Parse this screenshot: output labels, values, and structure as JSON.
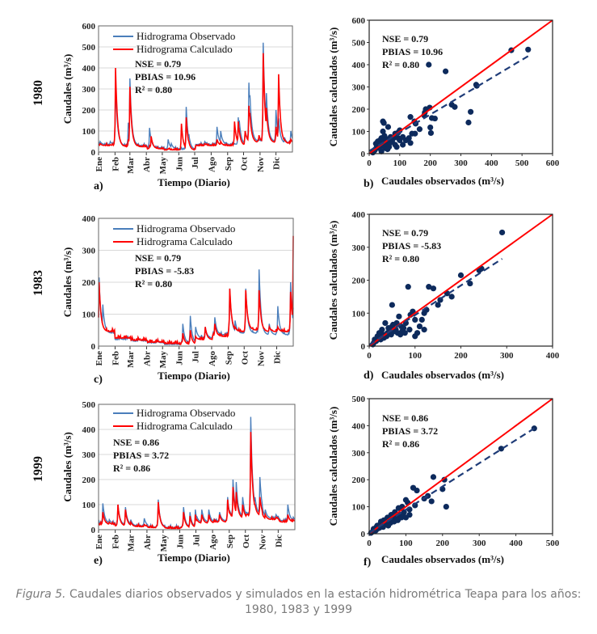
{
  "colors": {
    "observed": "#4a7ebb",
    "calculated": "#ff0000",
    "points": "#0d2a5c",
    "grid": "#d9d9d9"
  },
  "caption": {
    "label": "Figura 5.",
    "text": " Caudales diarios observados y simulados en la estación hidrométrica Teapa para los años:",
    "line2": "1980, 1983 y 1999"
  },
  "chart_data": [
    {
      "type": "line",
      "panel": "a)",
      "year": "1980",
      "xlabel": "Tiempo (Diario)",
      "ylabel": "Caudales (m³/s)",
      "ylim": [
        0,
        600
      ],
      "yticks": [
        0,
        100,
        200,
        300,
        400,
        500,
        600
      ],
      "months": [
        "Ene",
        "Feb",
        "Mar",
        "Abr",
        "May",
        "Jun",
        "Jul",
        "Ago",
        "Sep",
        "Oct",
        "Nov",
        "Dic"
      ],
      "legend": [
        "Hidrograma Observado",
        "Hidrograma Calculado"
      ],
      "stats": [
        "NSE = 0.79",
        "PBIAS = 10.96",
        "R² = 0.80"
      ],
      "baseline_monthly": {
        "observed": [
          35,
          30,
          30,
          20,
          15,
          12,
          35,
          35,
          35,
          50,
          50,
          40
        ],
        "calculated": [
          30,
          25,
          25,
          15,
          10,
          8,
          30,
          30,
          30,
          45,
          45,
          40
        ]
      },
      "peaks": [
        [
          3,
          50,
          40
        ],
        [
          22,
          50,
          35
        ],
        [
          32,
          330,
          400
        ],
        [
          40,
          60,
          50
        ],
        [
          56,
          140,
          60
        ],
        [
          59,
          350,
          310
        ],
        [
          70,
          45,
          30
        ],
        [
          96,
          115,
          30
        ],
        [
          99,
          40,
          75
        ],
        [
          131,
          60,
          15
        ],
        [
          137,
          40,
          10
        ],
        [
          156,
          10,
          135
        ],
        [
          165,
          215,
          165
        ],
        [
          170,
          85,
          50
        ],
        [
          200,
          50,
          40
        ],
        [
          223,
          120,
          60
        ],
        [
          230,
          100,
          50
        ],
        [
          239,
          45,
          20
        ],
        [
          256,
          40,
          145
        ],
        [
          263,
          165,
          145
        ],
        [
          265,
          150,
          100
        ],
        [
          276,
          100,
          100
        ],
        [
          283,
          330,
          220
        ],
        [
          285,
          270,
          180
        ],
        [
          302,
          60,
          80
        ],
        [
          310,
          520,
          470
        ],
        [
          316,
          280,
          210
        ],
        [
          334,
          200,
          120
        ],
        [
          339,
          160,
          370
        ],
        [
          350,
          70,
          60
        ],
        [
          362,
          100,
          60
        ]
      ]
    },
    {
      "type": "scatter",
      "panel": "b)",
      "year": "1980",
      "xlabel": "Caudales observados (m³/s)",
      "ylabel": "Caudales calculados (m³/s)",
      "xlim": [
        0,
        600
      ],
      "ylim": [
        0,
        600
      ],
      "ticks": [
        0,
        100,
        200,
        300,
        400,
        500,
        600
      ],
      "stats": [
        "NSE = 0.79",
        "PBIAS = 10.96",
        "R² = 0.80"
      ],
      "fit": {
        "slope": 0.82,
        "intercept": 12,
        "xmax": 520
      },
      "points": [
        [
          520,
          468
        ],
        [
          465,
          465
        ],
        [
          195,
          400
        ],
        [
          250,
          370
        ],
        [
          350,
          310
        ],
        [
          352,
          305
        ],
        [
          332,
          188
        ],
        [
          325,
          140
        ],
        [
          270,
          220
        ],
        [
          280,
          210
        ],
        [
          185,
          200
        ],
        [
          182,
          185
        ],
        [
          180,
          172
        ],
        [
          198,
          207
        ],
        [
          205,
          160
        ],
        [
          215,
          158
        ],
        [
          200,
          118
        ],
        [
          202,
          93
        ],
        [
          135,
          165
        ],
        [
          148,
          145
        ],
        [
          152,
          135
        ],
        [
          150,
          90
        ],
        [
          165,
          110
        ],
        [
          140,
          90
        ],
        [
          130,
          70
        ],
        [
          120,
          60
        ],
        [
          135,
          48
        ],
        [
          110,
          40
        ],
        [
          45,
          145
        ],
        [
          48,
          138
        ],
        [
          62,
          120
        ],
        [
          45,
          100
        ],
        [
          100,
          105
        ],
        [
          95,
          95
        ],
        [
          85,
          90
        ],
        [
          90,
          30
        ],
        [
          100,
          60
        ],
        [
          80,
          70
        ],
        [
          70,
          75
        ],
        [
          60,
          65
        ],
        [
          55,
          50
        ],
        [
          50,
          80
        ],
        [
          40,
          70
        ],
        [
          35,
          60
        ],
        [
          30,
          40
        ],
        [
          25,
          30
        ],
        [
          20,
          20
        ],
        [
          15,
          10
        ],
        [
          12,
          5
        ],
        [
          18,
          15
        ],
        [
          28,
          55
        ],
        [
          38,
          45
        ],
        [
          45,
          35
        ],
        [
          52,
          25
        ],
        [
          65,
          30
        ],
        [
          75,
          55
        ],
        [
          85,
          40
        ],
        [
          60,
          20
        ],
        [
          40,
          10
        ],
        [
          33,
          25
        ],
        [
          22,
          45
        ],
        [
          48,
          60
        ],
        [
          58,
          42
        ],
        [
          68,
          48
        ],
        [
          95,
          70
        ],
        [
          110,
          75
        ]
      ]
    },
    {
      "type": "line",
      "panel": "c)",
      "year": "1983",
      "xlabel": "Tiempo (Diario)",
      "ylabel": "Caudales (m³/s)",
      "ylim": [
        0,
        400
      ],
      "yticks": [
        0,
        100,
        200,
        300,
        400
      ],
      "months": [
        "Ene",
        "Feb",
        "Mar",
        "Abr",
        "May",
        "Jun",
        "Jul",
        "Ago",
        "Sep",
        "Oct",
        "Nov",
        "Dic"
      ],
      "legend": [
        "Hidrograma Observado",
        "Hidrograma Calculado"
      ],
      "stats": [
        "NSE = 0.79",
        "PBIAS = -5.83",
        "R² = 0.80"
      ],
      "baseline_monthly": {
        "observed": [
          40,
          20,
          15,
          10,
          5,
          8,
          25,
          35,
          40,
          40,
          35,
          35
        ],
        "calculated": [
          45,
          25,
          18,
          12,
          8,
          5,
          20,
          30,
          45,
          50,
          45,
          45
        ]
      },
      "peaks": [
        [
          1,
          215,
          200
        ],
        [
          8,
          130,
          60
        ],
        [
          40,
          25,
          25
        ],
        [
          55,
          30,
          20
        ],
        [
          75,
          25,
          20
        ],
        [
          110,
          15,
          15
        ],
        [
          158,
          70,
          40
        ],
        [
          172,
          95,
          50
        ],
        [
          182,
          60,
          30
        ],
        [
          200,
          60,
          60
        ],
        [
          218,
          90,
          70
        ],
        [
          246,
          180,
          180
        ],
        [
          256,
          80,
          60
        ],
        [
          276,
          180,
          175
        ],
        [
          301,
          240,
          175
        ],
        [
          320,
          70,
          60
        ],
        [
          336,
          125,
          60
        ],
        [
          360,
          200,
          170
        ],
        [
          365,
          120,
          345
        ]
      ]
    },
    {
      "type": "scatter",
      "panel": "d)",
      "year": "1983",
      "xlabel": "Caudales observados (m³/s)",
      "ylabel": "Caudales calculados (m³/s)",
      "xlim": [
        0,
        400
      ],
      "ylim": [
        0,
        400
      ],
      "ticks": [
        0,
        100,
        200,
        300,
        400
      ],
      "stats": [
        "NSE = 0.79",
        "PBIAS = -5.83",
        "R² = 0.80"
      ],
      "fit": {
        "slope": 0.9,
        "intercept": 4,
        "xmax": 290
      },
      "points": [
        [
          290,
          345
        ],
        [
          245,
          235
        ],
        [
          240,
          230
        ],
        [
          220,
          190
        ],
        [
          200,
          215
        ],
        [
          180,
          150
        ],
        [
          170,
          160
        ],
        [
          155,
          140
        ],
        [
          150,
          125
        ],
        [
          140,
          175
        ],
        [
          130,
          180
        ],
        [
          125,
          110
        ],
        [
          120,
          100
        ],
        [
          110,
          60
        ],
        [
          100,
          80
        ],
        [
          95,
          105
        ],
        [
          90,
          95
        ],
        [
          85,
          180
        ],
        [
          80,
          70
        ],
        [
          75,
          55
        ],
        [
          70,
          60
        ],
        [
          65,
          90
        ],
        [
          60,
          70
        ],
        [
          55,
          45
        ],
        [
          50,
          125
        ],
        [
          50,
          60
        ],
        [
          45,
          50
        ],
        [
          40,
          40
        ],
        [
          35,
          70
        ],
        [
          30,
          35
        ],
        [
          25,
          20
        ],
        [
          20,
          25
        ],
        [
          15,
          15
        ],
        [
          10,
          10
        ],
        [
          8,
          5
        ],
        [
          12,
          20
        ],
        [
          18,
          30
        ],
        [
          22,
          40
        ],
        [
          28,
          50
        ],
        [
          32,
          25
        ],
        [
          38,
          30
        ],
        [
          42,
          55
        ],
        [
          48,
          35
        ],
        [
          52,
          65
        ],
        [
          58,
          50
        ],
        [
          62,
          40
        ],
        [
          68,
          35
        ],
        [
          72,
          45
        ],
        [
          78,
          40
        ],
        [
          88,
          50
        ],
        [
          100,
          30
        ],
        [
          105,
          40
        ],
        [
          115,
          80
        ],
        [
          120,
          50
        ]
      ]
    },
    {
      "type": "line",
      "panel": "e)",
      "year": "1999",
      "xlabel": "Tiempo (Diario)",
      "ylabel": "Caudales (m³/s)",
      "ylim": [
        0,
        500
      ],
      "yticks": [
        0,
        100,
        200,
        300,
        400,
        500
      ],
      "months": [
        "Ene",
        "Feb",
        "Mar",
        "Abr",
        "May",
        "Jun",
        "Jul",
        "Ago",
        "Sep",
        "Oct",
        "Nov",
        "Dic"
      ],
      "legend": [
        "Hidrograma Observado",
        "Hidrograma Calculado"
      ],
      "stats": [
        "NSE = 0.86",
        "PBIAS = 3.72",
        "R² = 0.86"
      ],
      "baseline_monthly": {
        "observed": [
          25,
          20,
          15,
          10,
          8,
          10,
          30,
          35,
          50,
          60,
          45,
          35
        ],
        "calculated": [
          20,
          15,
          12,
          8,
          5,
          8,
          25,
          30,
          45,
          55,
          40,
          30
        ]
      },
      "peaks": [
        [
          8,
          105,
          70
        ],
        [
          20,
          40,
          30
        ],
        [
          36,
          100,
          100
        ],
        [
          50,
          90,
          80
        ],
        [
          60,
          40,
          30
        ],
        [
          85,
          45,
          20
        ],
        [
          111,
          120,
          110
        ],
        [
          158,
          90,
          70
        ],
        [
          170,
          70,
          55
        ],
        [
          180,
          80,
          60
        ],
        [
          192,
          80,
          60
        ],
        [
          205,
          80,
          60
        ],
        [
          225,
          70,
          60
        ],
        [
          240,
          130,
          120
        ],
        [
          250,
          200,
          170
        ],
        [
          256,
          190,
          150
        ],
        [
          268,
          130,
          100
        ],
        [
          283,
          450,
          390
        ],
        [
          291,
          130,
          100
        ],
        [
          300,
          210,
          130
        ],
        [
          310,
          80,
          60
        ],
        [
          330,
          60,
          50
        ],
        [
          352,
          100,
          60
        ],
        [
          362,
          50,
          40
        ]
      ]
    },
    {
      "type": "scatter",
      "panel": "f)",
      "year": "1999",
      "xlabel": "Caudales observados (m³/s)",
      "ylabel": "Caudales calculados (m³/s)",
      "xlim": [
        0,
        500
      ],
      "ylim": [
        0,
        500
      ],
      "ticks": [
        0,
        100,
        200,
        300,
        400,
        500
      ],
      "stats": [
        "NSE = 0.86",
        "PBIAS = 3.72",
        "R² = 0.86"
      ],
      "fit": {
        "slope": 0.86,
        "intercept": 3,
        "xmax": 450
      },
      "points": [
        [
          450,
          390
        ],
        [
          360,
          315
        ],
        [
          210,
          100
        ],
        [
          205,
          200
        ],
        [
          200,
          165
        ],
        [
          175,
          210
        ],
        [
          170,
          120
        ],
        [
          160,
          140
        ],
        [
          150,
          130
        ],
        [
          130,
          160
        ],
        [
          125,
          105
        ],
        [
          120,
          170
        ],
        [
          110,
          90
        ],
        [
          105,
          115
        ],
        [
          100,
          125
        ],
        [
          95,
          80
        ],
        [
          90,
          100
        ],
        [
          85,
          70
        ],
        [
          80,
          95
        ],
        [
          75,
          60
        ],
        [
          70,
          80
        ],
        [
          65,
          55
        ],
        [
          60,
          70
        ],
        [
          55,
          45
        ],
        [
          50,
          60
        ],
        [
          45,
          40
        ],
        [
          40,
          50
        ],
        [
          35,
          30
        ],
        [
          30,
          35
        ],
        [
          25,
          20
        ],
        [
          20,
          25
        ],
        [
          15,
          10
        ],
        [
          10,
          8
        ],
        [
          5,
          3
        ],
        [
          12,
          18
        ],
        [
          18,
          12
        ],
        [
          22,
          30
        ],
        [
          28,
          22
        ],
        [
          32,
          45
        ],
        [
          38,
          25
        ],
        [
          42,
          35
        ],
        [
          48,
          55
        ],
        [
          52,
          30
        ],
        [
          58,
          40
        ],
        [
          62,
          50
        ],
        [
          68,
          45
        ],
        [
          72,
          65
        ],
        [
          78,
          50
        ],
        [
          88,
          60
        ],
        [
          92,
          70
        ],
        [
          100,
          60
        ],
        [
          110,
          70
        ]
      ]
    }
  ]
}
